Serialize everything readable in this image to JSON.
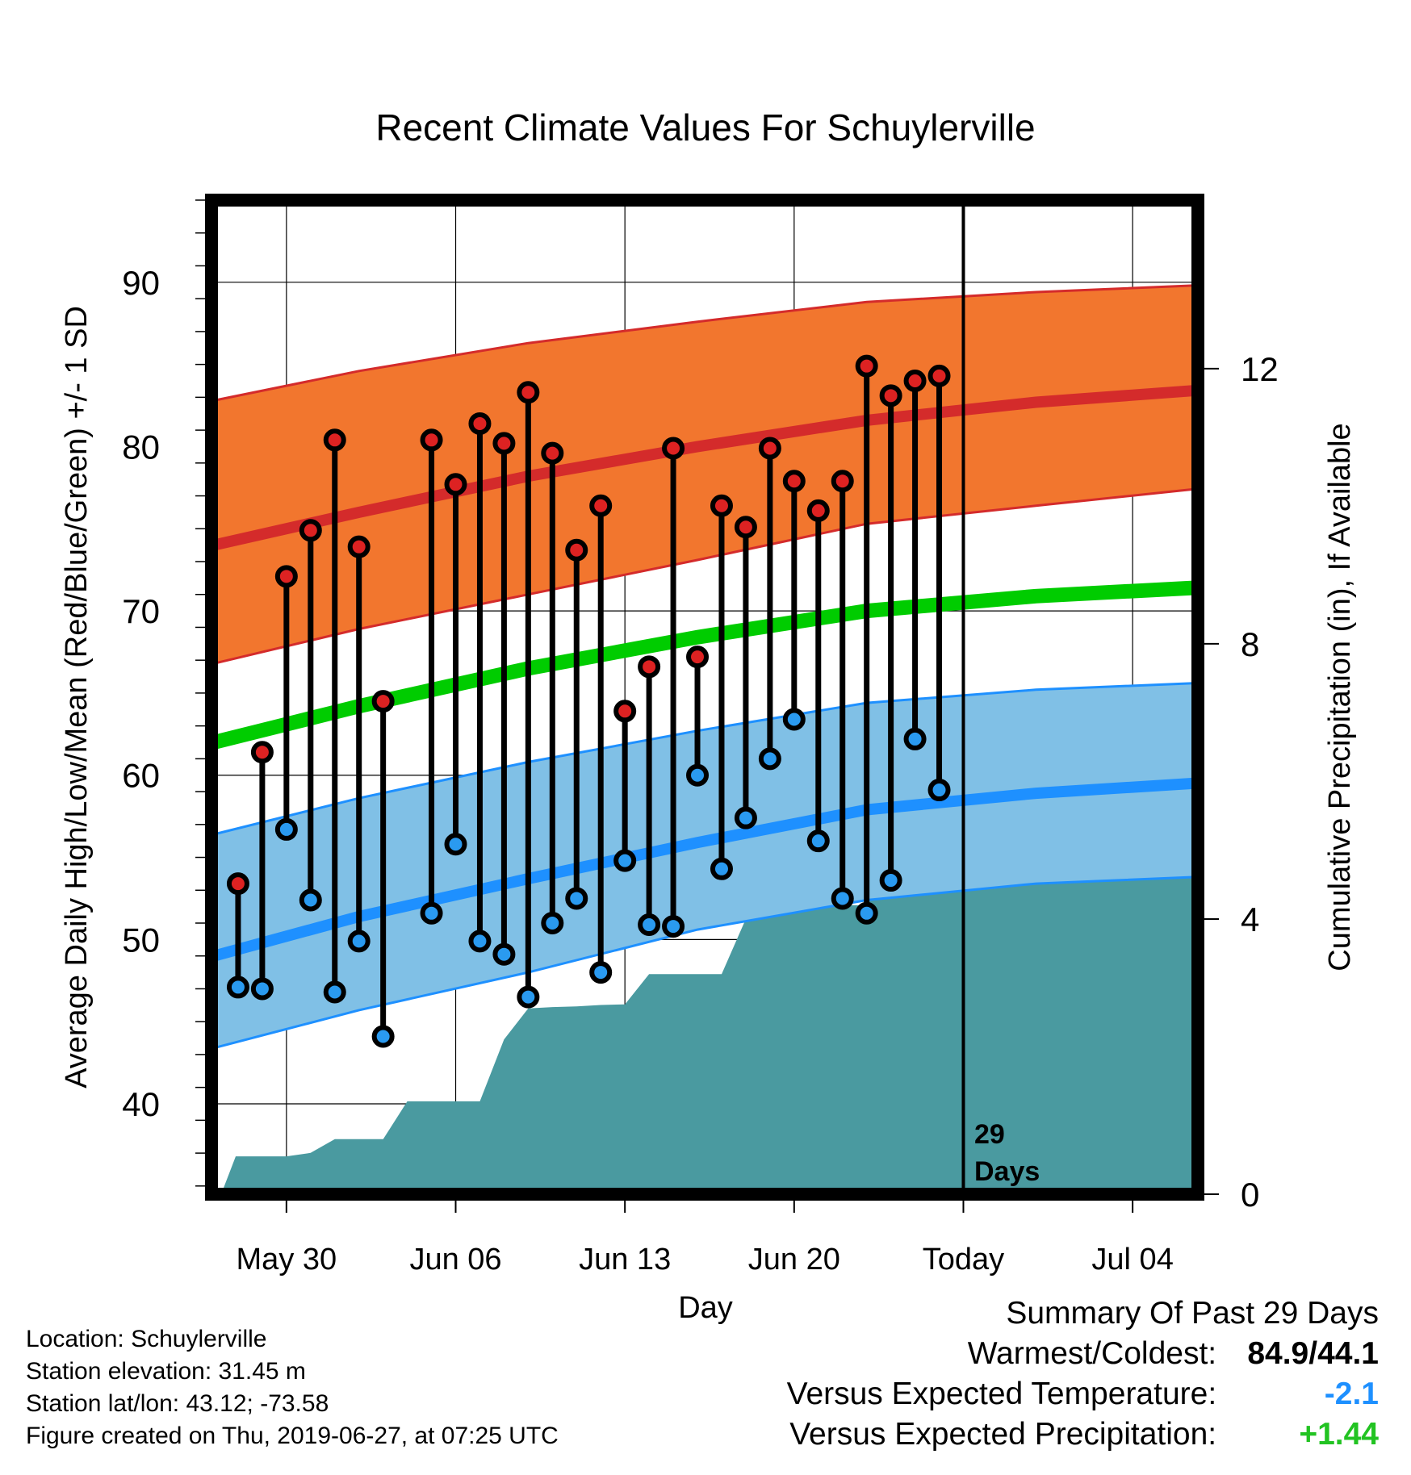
{
  "chart_data": {
    "type": "line",
    "title": "Recent Climate Values For Schuylerville",
    "xlabel": "Day",
    "ylabel_left": "Average Daily High/Low/Mean (Red/Blue/Green) +/- 1 SD",
    "ylabel_right": "Cumulative Precipitation (in), If Available",
    "x_ticks": [
      "May 30",
      "Jun 06",
      "Jun 13",
      "Jun 20",
      "Today",
      "Jul 04"
    ],
    "x_tick_positions": [
      2,
      9,
      16,
      23,
      30,
      37
    ],
    "xlim": [
      -1.1,
      39.7
    ],
    "ylim_left": [
      34.5,
      95
    ],
    "yticks_left": [
      40,
      50,
      60,
      70,
      80,
      90
    ],
    "ylim_right": [
      0,
      14.45
    ],
    "yticks_right": [
      0,
      4,
      8,
      12
    ],
    "today_index": 30,
    "today_annotation": [
      "29",
      "Days"
    ],
    "grid": true,
    "normals": {
      "x": [
        -1,
        5,
        12,
        19,
        26,
        33,
        39.5
      ],
      "high_mean": [
        74.0,
        76.0,
        78.2,
        80.0,
        81.6,
        82.7,
        83.4
      ],
      "high_upper": [
        82.8,
        84.6,
        86.3,
        87.6,
        88.8,
        89.4,
        89.8
      ],
      "high_lower": [
        66.8,
        68.9,
        71.0,
        73.1,
        75.3,
        76.4,
        77.4
      ],
      "avg_mean": [
        62.0,
        64.2,
        66.5,
        68.4,
        70.0,
        70.9,
        71.4
      ],
      "low_mean": [
        49.0,
        51.4,
        53.7,
        55.9,
        57.9,
        58.9,
        59.5
      ],
      "low_upper": [
        56.4,
        58.6,
        60.8,
        62.7,
        64.4,
        65.2,
        65.6
      ],
      "low_lower": [
        43.4,
        45.7,
        48.0,
        50.6,
        52.4,
        53.4,
        53.8
      ]
    },
    "observed": {
      "x": [
        0,
        1,
        2,
        3,
        4,
        5,
        6,
        8,
        9,
        10,
        11,
        12,
        13,
        14,
        15,
        16,
        17,
        18,
        19,
        20,
        21,
        22,
        23,
        24,
        25,
        26,
        27,
        28,
        29
      ],
      "high": [
        53.4,
        61.4,
        72.1,
        74.9,
        80.4,
        73.9,
        64.5,
        80.4,
        77.7,
        81.4,
        80.2,
        83.3,
        79.6,
        73.7,
        76.4,
        63.9,
        66.6,
        79.9,
        67.2,
        76.4,
        75.1,
        79.9,
        77.9,
        76.1,
        77.9,
        84.9,
        83.1,
        84.0,
        84.3
      ],
      "low": [
        47.1,
        47.0,
        56.7,
        52.4,
        46.8,
        49.9,
        44.1,
        51.6,
        55.8,
        49.9,
        49.1,
        46.5,
        51.0,
        52.5,
        48.0,
        54.8,
        50.9,
        50.8,
        60.0,
        54.3,
        57.4,
        61.0,
        63.4,
        56.0,
        52.5,
        51.6,
        53.6,
        62.2,
        59.1
      ]
    },
    "precipitation": {
      "x": [
        -0.7,
        -0.1,
        2.0,
        3.0,
        4.0,
        5.0,
        6.0,
        7.0,
        8.0,
        9.0,
        10.0,
        11.0,
        12.0,
        13.0,
        14.0,
        15.0,
        16.0,
        17.0,
        18.0,
        19.0,
        20.0,
        21.0,
        22.0,
        23.0,
        24.0,
        25.0,
        26.0,
        27.0,
        28.0,
        29.0,
        30.0,
        39.5
      ],
      "value": [
        0.0,
        0.55,
        0.55,
        0.6,
        0.8,
        0.8,
        0.8,
        1.35,
        1.35,
        1.35,
        1.35,
        2.25,
        2.7,
        2.72,
        2.73,
        2.75,
        2.76,
        3.2,
        3.2,
        3.2,
        3.2,
        4.0,
        4.2,
        4.2,
        4.2,
        4.2,
        4.2,
        4.9,
        5.0,
        5.0,
        5.0,
        5.0
      ]
    },
    "colors": {
      "high_band": "#f2762e",
      "high_line": "#d42b2b",
      "low_band": "#80c0e6",
      "low_line": "#1e90ff",
      "avg_line": "#00cc00",
      "precip_fill": "#4a9aa0",
      "high_dot": "#dd2222",
      "low_dot": "#2a9af0"
    }
  },
  "info": {
    "location": "Location: Schuylerville",
    "elevation": "Station elevation: 31.45 m",
    "latlon": "Station lat/lon: 43.12; -73.58",
    "created": "Figure created on Thu, 2019-06-27, at 07:25 UTC"
  },
  "summary": {
    "title": "Summary Of Past 29 Days",
    "warmest_coldest_label": "Warmest/Coldest:",
    "warmest_coldest_value": "84.9/44.1",
    "temp_label": "Versus Expected Temperature:",
    "temp_value": "-2.1",
    "precip_label": "Versus Expected Precipitation:",
    "precip_value": "+1.44"
  }
}
